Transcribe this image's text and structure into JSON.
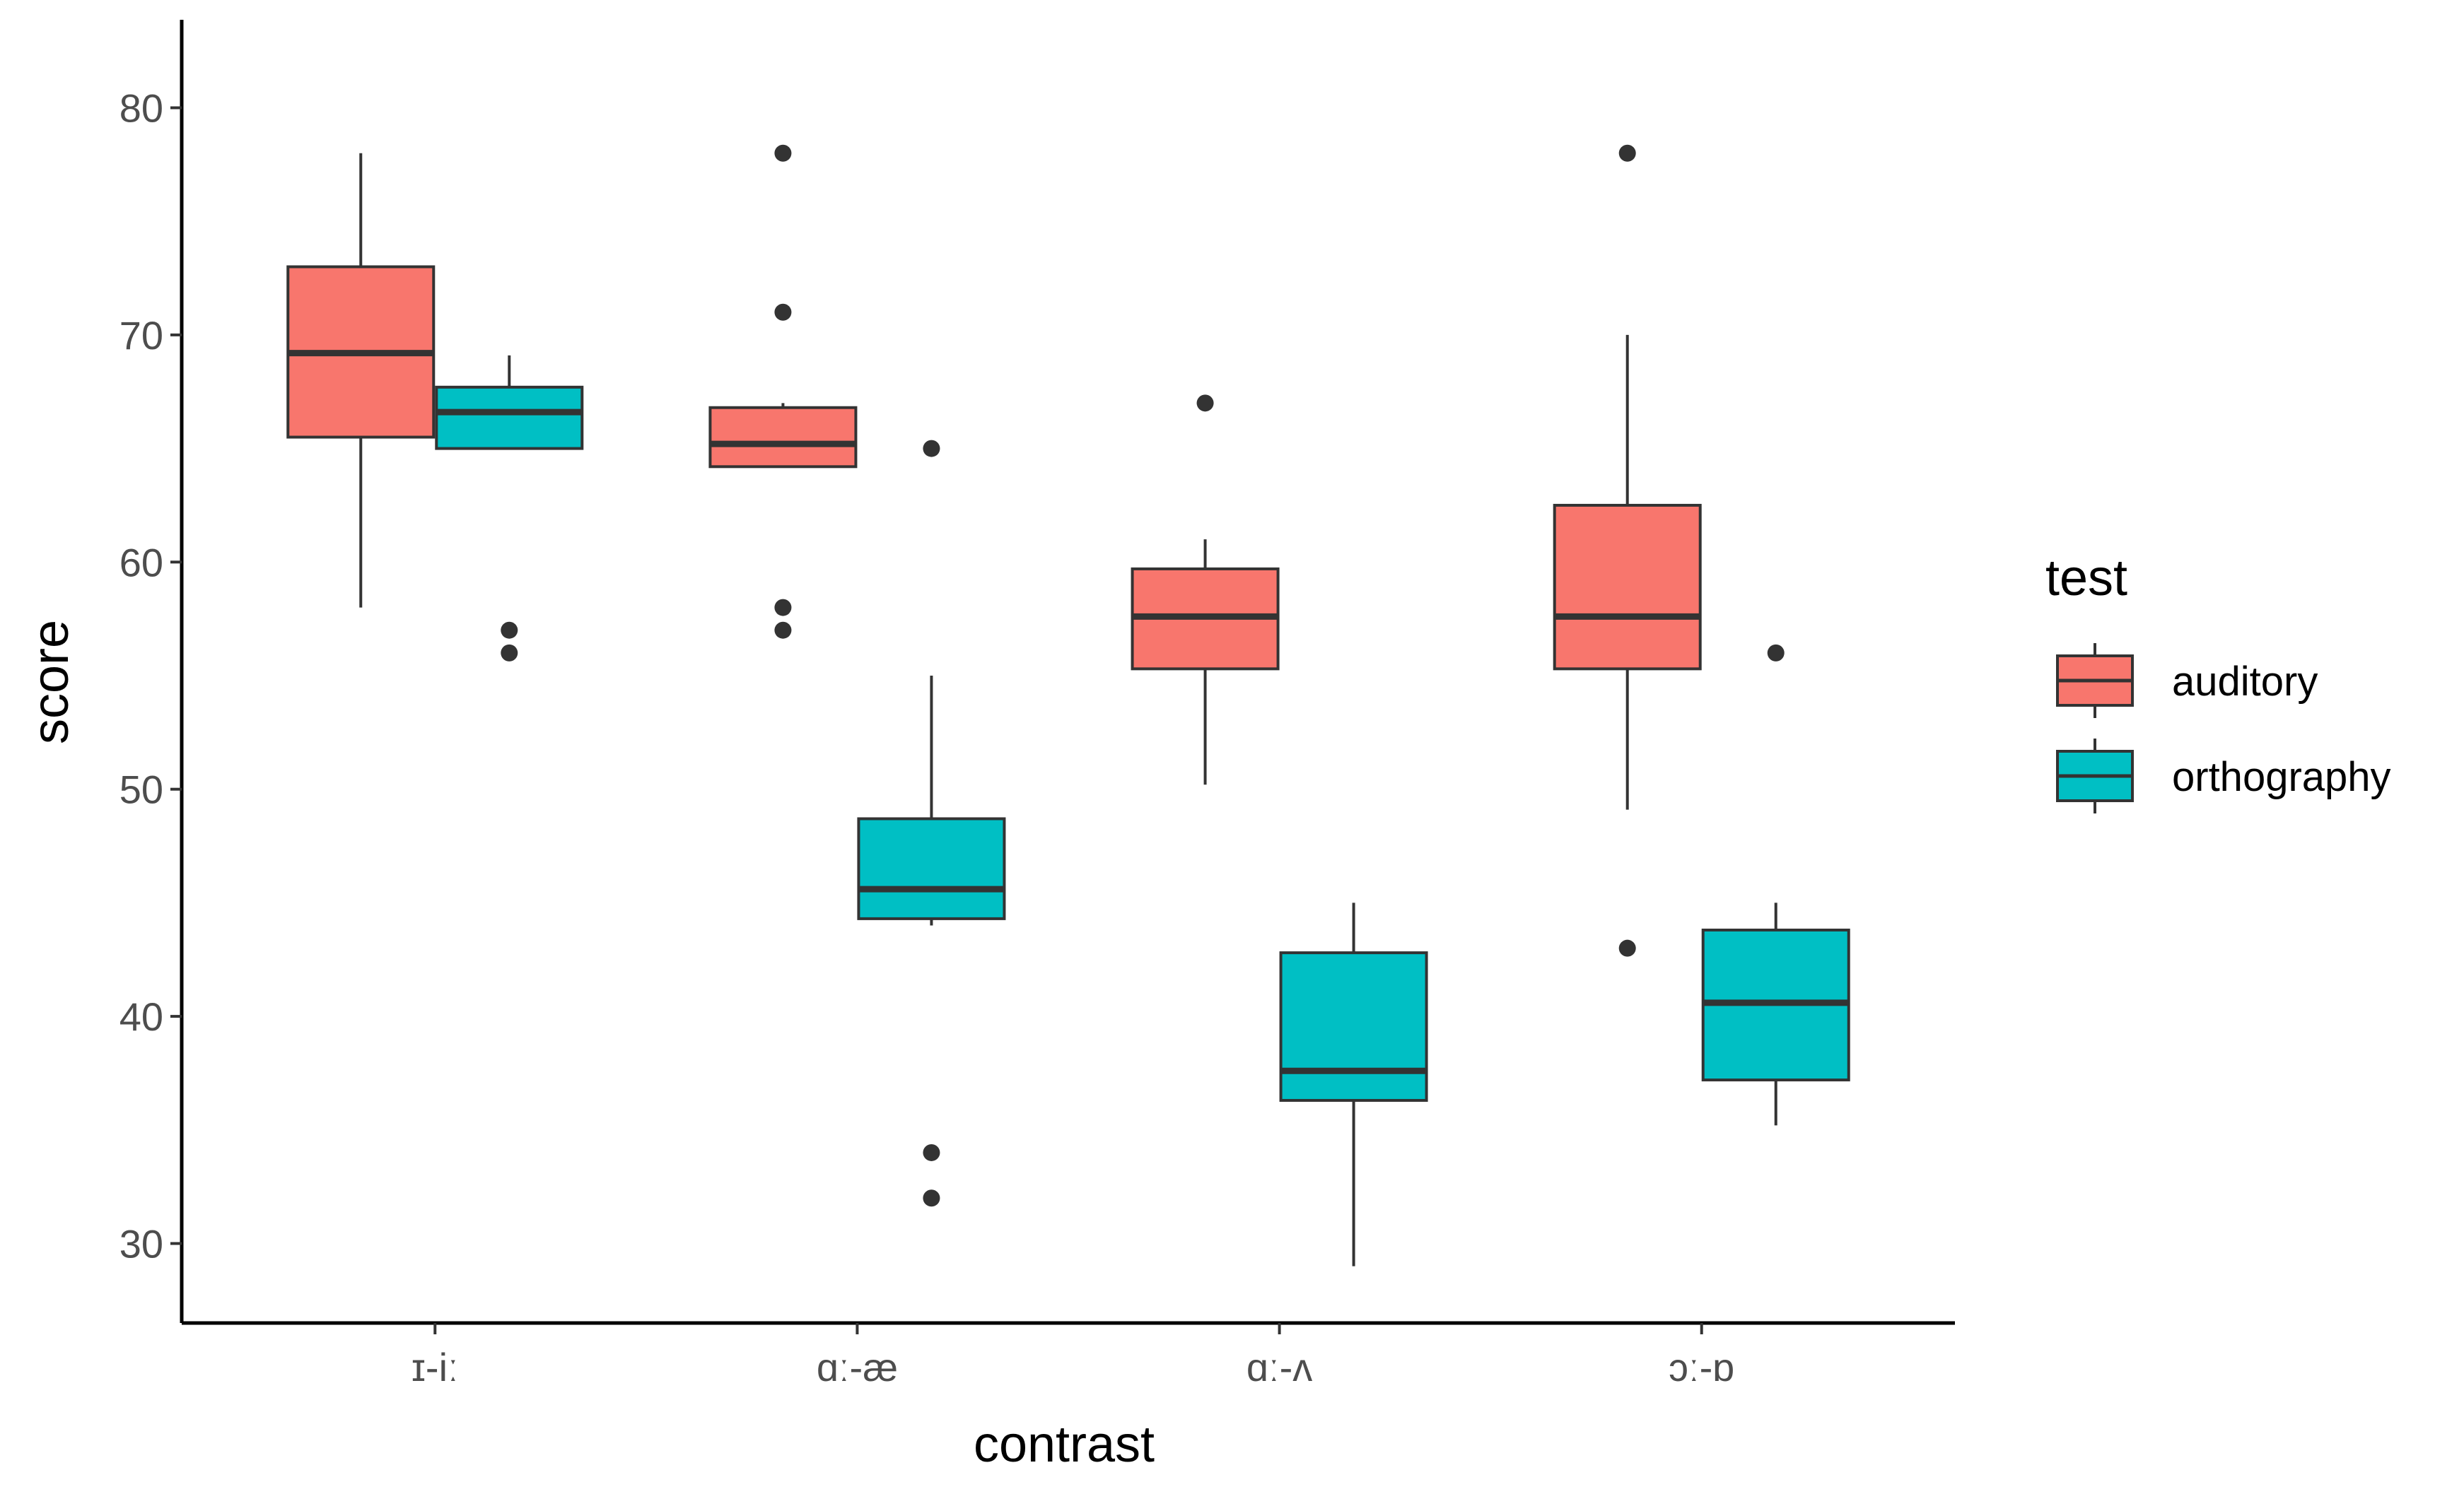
{
  "chart_data": {
    "type": "boxplot",
    "xlabel": "contrast",
    "ylabel": "score",
    "ylim": [
      26.5,
      83.5
    ],
    "yticks": [
      30,
      40,
      50,
      60,
      70,
      80
    ],
    "categories": [
      "ɪ-iː",
      "ɑː-æ",
      "ɑː-ʌ",
      "ɔː-ɒ"
    ],
    "legend": {
      "title": "test",
      "position": "right",
      "entries": [
        "auditory",
        "orthography"
      ]
    },
    "colors": {
      "auditory": "#F8766D",
      "orthography": "#00BFC4",
      "line": "#333333"
    },
    "series": [
      {
        "name": "auditory",
        "boxes": [
          {
            "min": 58,
            "q1": 65.5,
            "median": 69.2,
            "q3": 73,
            "max": 78,
            "outliers": []
          },
          {
            "min": 64.2,
            "q1": 64.2,
            "median": 65.2,
            "q3": 66.8,
            "max": 67,
            "outliers": [
              78,
              71,
              58,
              57
            ]
          },
          {
            "min": 50.2,
            "q1": 55.3,
            "median": 57.6,
            "q3": 59.7,
            "max": 61,
            "outliers": [
              67
            ]
          },
          {
            "min": 49.1,
            "q1": 55.3,
            "median": 57.6,
            "q3": 62.5,
            "max": 70,
            "outliers": [
              78,
              43
            ]
          }
        ]
      },
      {
        "name": "orthography",
        "boxes": [
          {
            "min": 65,
            "q1": 65,
            "median": 66.6,
            "q3": 67.7,
            "max": 69.1,
            "outliers": [
              57,
              56
            ]
          },
          {
            "min": 44,
            "q1": 44.3,
            "median": 45.6,
            "q3": 48.7,
            "max": 55,
            "outliers": [
              65,
              34,
              32
            ]
          },
          {
            "min": 29,
            "q1": 36.3,
            "median": 37.6,
            "q3": 42.8,
            "max": 45,
            "outliers": []
          },
          {
            "min": 35.2,
            "q1": 37.2,
            "median": 40.6,
            "q3": 43.8,
            "max": 45,
            "outliers": [
              56
            ]
          }
        ]
      }
    ]
  }
}
